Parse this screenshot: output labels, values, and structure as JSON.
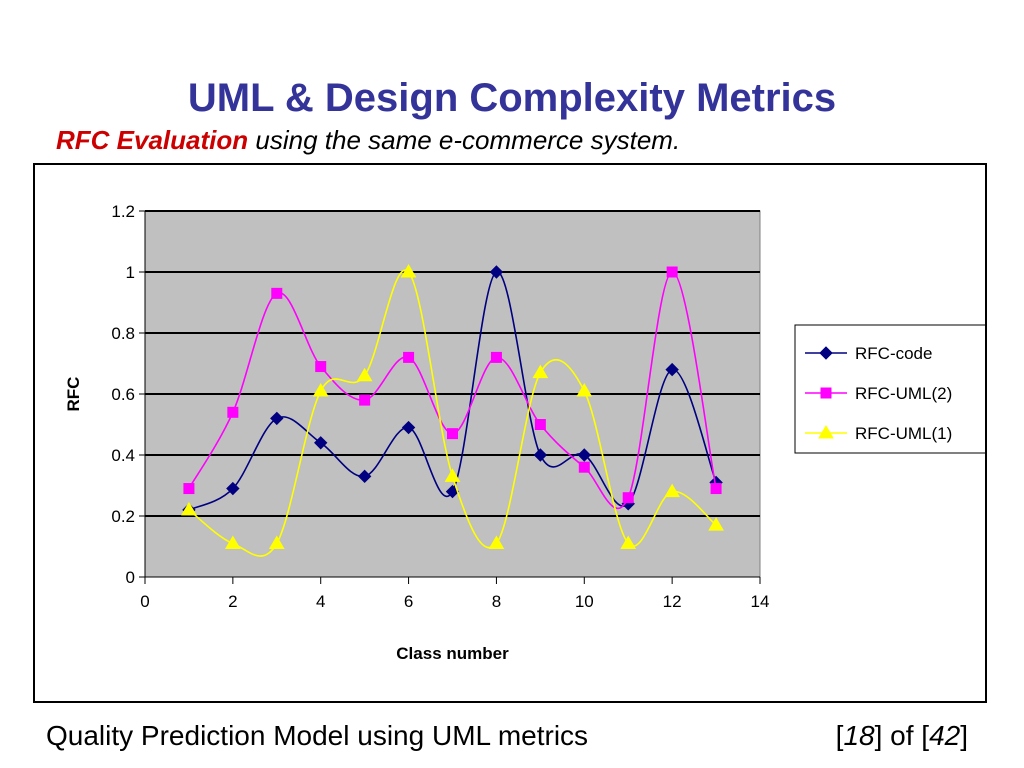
{
  "slide": {
    "title": "UML & Design Complexity Metrics",
    "subtitle_accent": "RFC Evaluation",
    "subtitle_rest": "using the same e-commerce system.",
    "footer_left": "Quality Prediction Model using UML metrics",
    "footer_page_open": "[",
    "footer_page_current": "18",
    "footer_page_middle": "] of [",
    "footer_page_total": "42",
    "footer_page_close": "]"
  },
  "colors": {
    "title": "#333399",
    "accent": "#cc0000",
    "plot_background": "#c0c0c0",
    "rfc_code": "#000080",
    "rfc_uml2": "#ff00ff",
    "rfc_uml1": "#ffff00"
  },
  "chart_data": {
    "type": "line",
    "smoothed": true,
    "xlabel": "Class number",
    "ylabel": "RFC",
    "xlim": [
      0,
      14
    ],
    "ylim": [
      0,
      1.2
    ],
    "x_ticks": [
      "0",
      "2",
      "4",
      "6",
      "8",
      "10",
      "12",
      "14"
    ],
    "y_ticks": [
      "0",
      "0.2",
      "0.4",
      "0.6",
      "0.8",
      "1",
      "1.2"
    ],
    "grid": "horizontal",
    "legend_position": "right",
    "x": [
      1,
      2,
      3,
      4,
      5,
      6,
      7,
      8,
      9,
      10,
      11,
      12,
      13
    ],
    "series": [
      {
        "name": "RFC-code",
        "color": "#000080",
        "marker": "diamond",
        "values": [
          0.22,
          0.29,
          0.52,
          0.44,
          0.33,
          0.49,
          0.28,
          1.0,
          0.4,
          0.4,
          0.24,
          0.68,
          0.31
        ]
      },
      {
        "name": "RFC-UML(2)",
        "color": "#ff00ff",
        "marker": "square",
        "values": [
          0.29,
          0.54,
          0.93,
          0.69,
          0.58,
          0.72,
          0.47,
          0.72,
          0.5,
          0.36,
          0.26,
          1.0,
          0.29
        ]
      },
      {
        "name": "RFC-UML(1)",
        "color": "#ffff00",
        "marker": "triangle",
        "values": [
          0.22,
          0.11,
          0.11,
          0.61,
          0.66,
          1.0,
          0.33,
          0.11,
          0.67,
          0.61,
          0.11,
          0.28,
          0.17
        ]
      }
    ]
  }
}
